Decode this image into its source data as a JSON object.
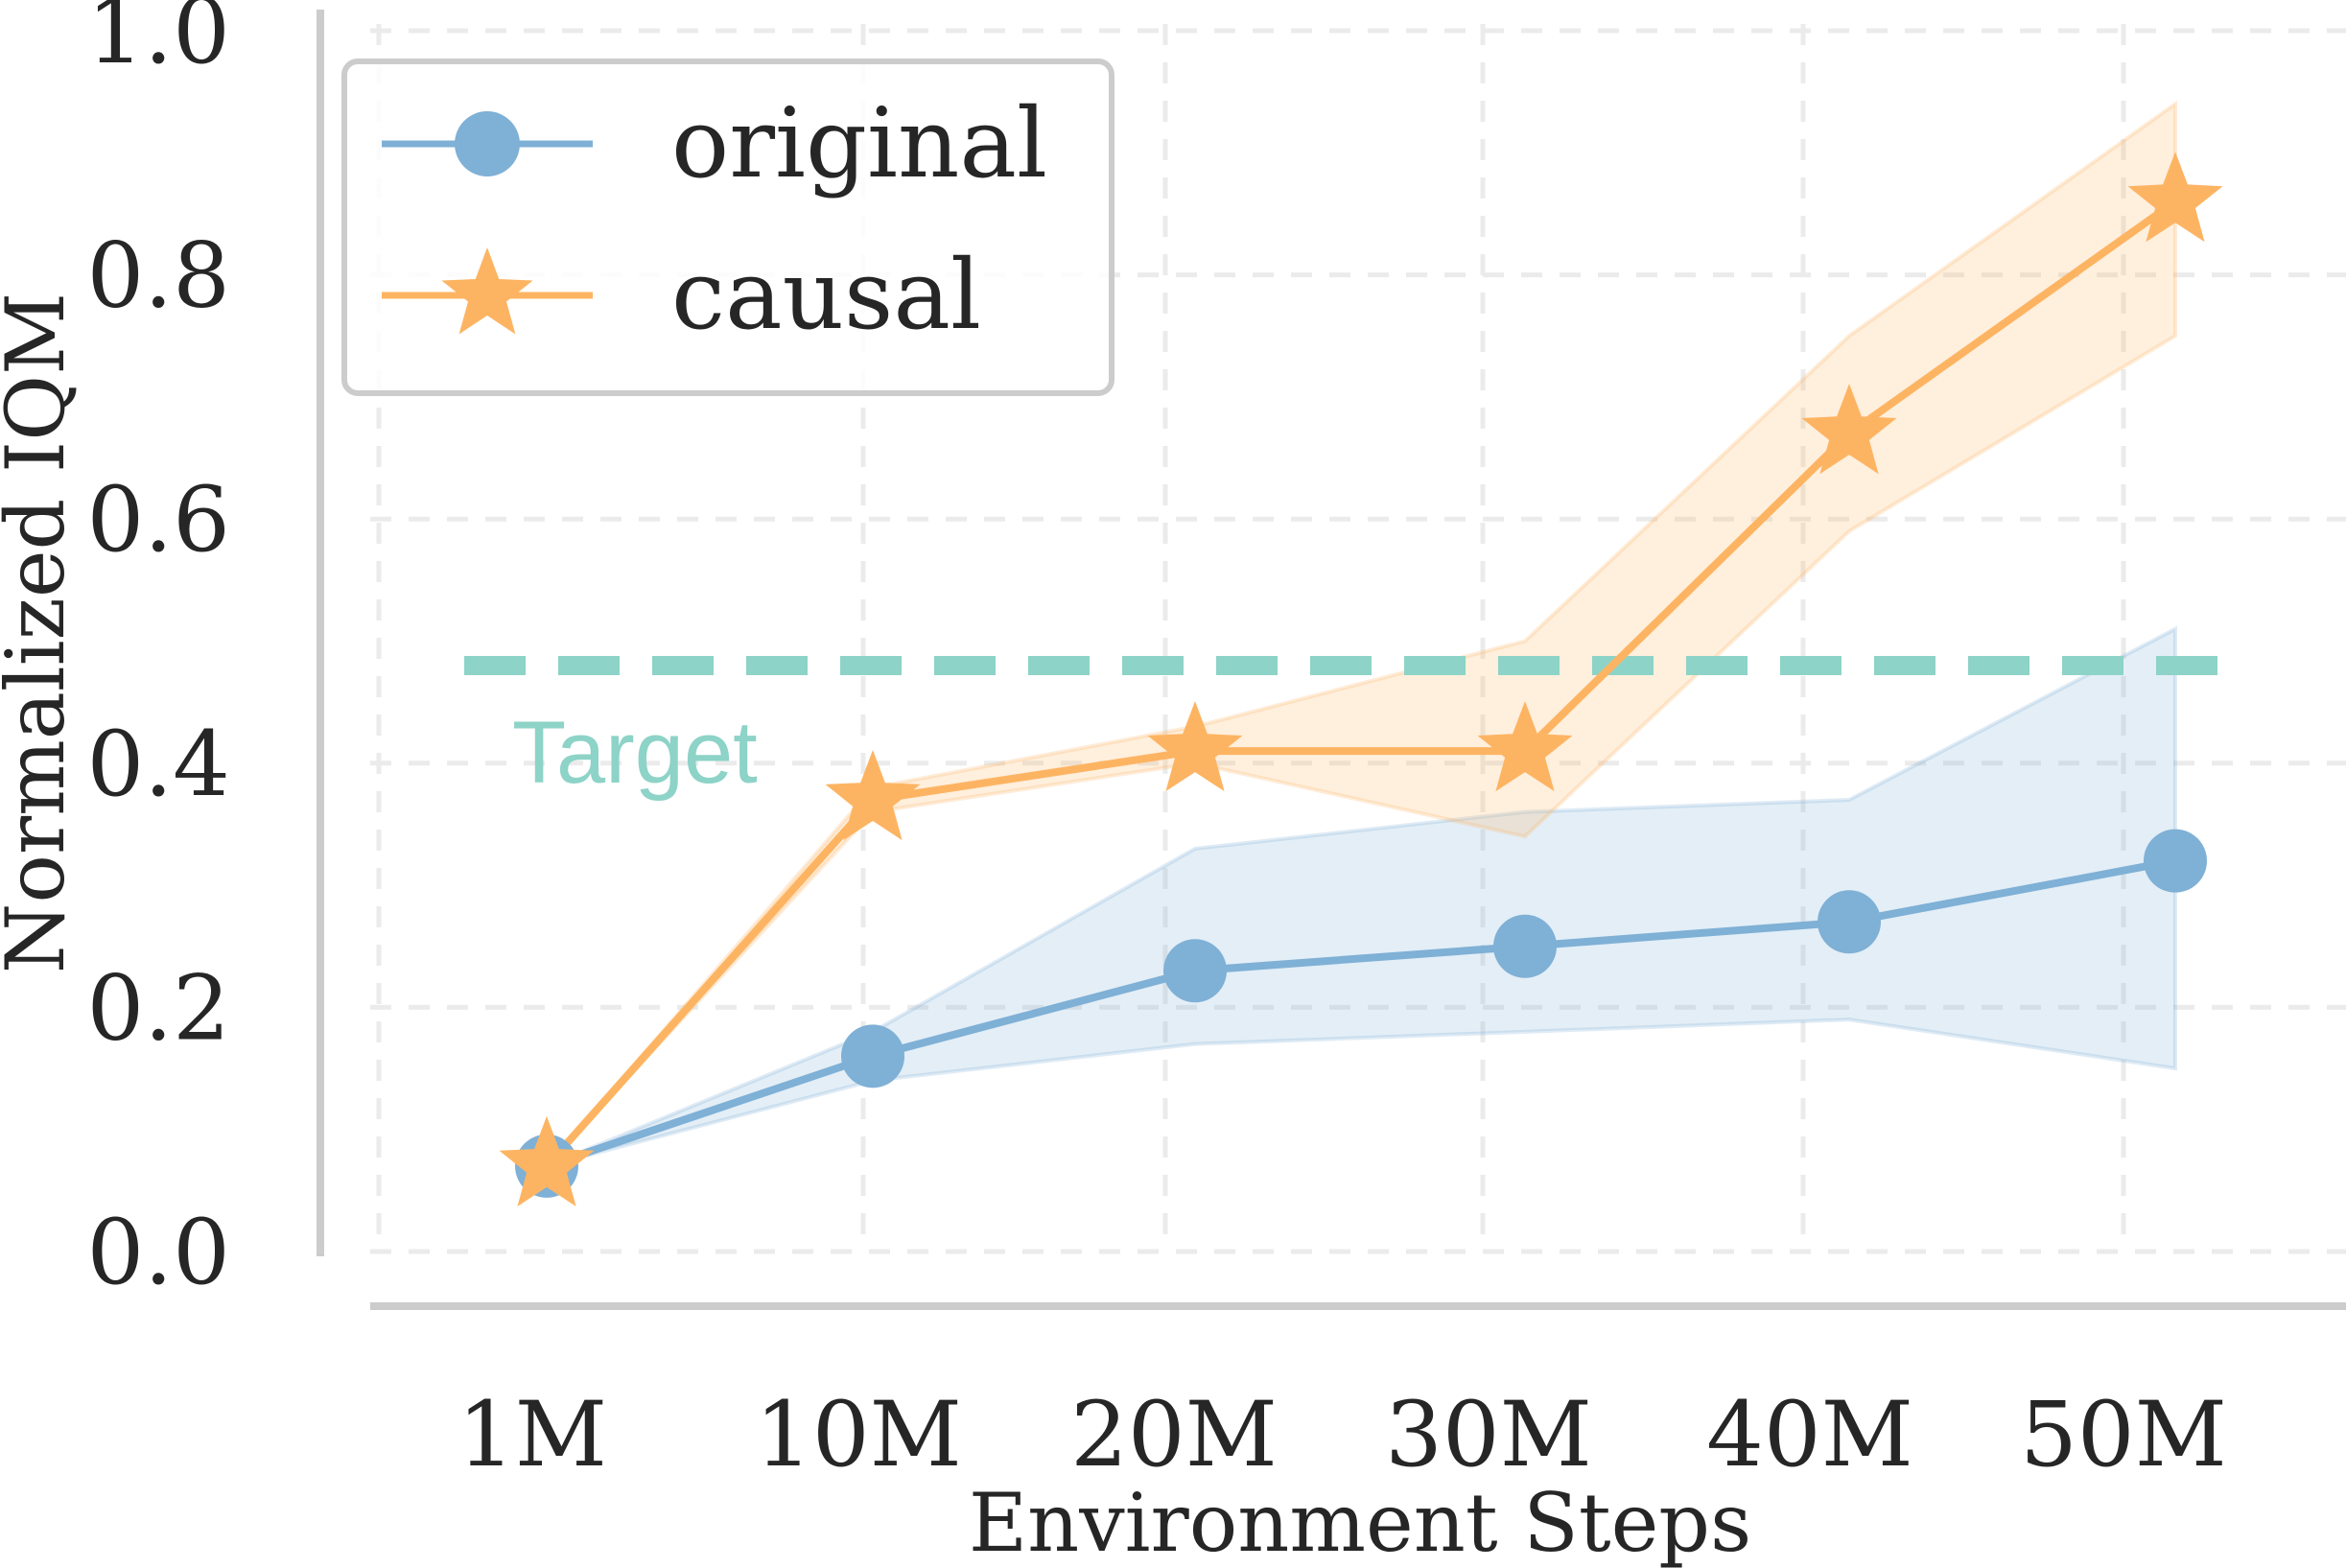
{
  "chart_data": {
    "type": "line",
    "xlabel": "Environment Steps",
    "ylabel": "Normalized IQM",
    "categories": [
      "1M",
      "10M",
      "20M",
      "30M",
      "40M",
      "50M"
    ],
    "ylim": [
      0.0,
      1.0
    ],
    "yticks": [
      "0.0",
      "0.2",
      "0.4",
      "0.6",
      "0.8",
      "1.0"
    ],
    "grid": true,
    "legend_position": "top-left",
    "series": [
      {
        "name": "original",
        "marker": "circle",
        "color": "#7fb0d6",
        "values": [
          0.07,
          0.16,
          0.23,
          0.25,
          0.27,
          0.32
        ],
        "ci_lower": [
          0.07,
          0.14,
          0.17,
          0.18,
          0.19,
          0.15
        ],
        "ci_upper": [
          0.07,
          0.18,
          0.33,
          0.36,
          0.37,
          0.51
        ]
      },
      {
        "name": "causal",
        "marker": "star",
        "color": "#fdb462",
        "values": [
          0.07,
          0.37,
          0.41,
          0.41,
          0.67,
          0.86
        ],
        "ci_lower": [
          0.07,
          0.36,
          0.4,
          0.34,
          0.59,
          0.75
        ],
        "ci_upper": [
          0.07,
          0.38,
          0.43,
          0.5,
          0.75,
          0.94
        ]
      }
    ],
    "reference_line": {
      "label": "Target",
      "value": 0.48,
      "color": "#8dd3c7"
    }
  }
}
